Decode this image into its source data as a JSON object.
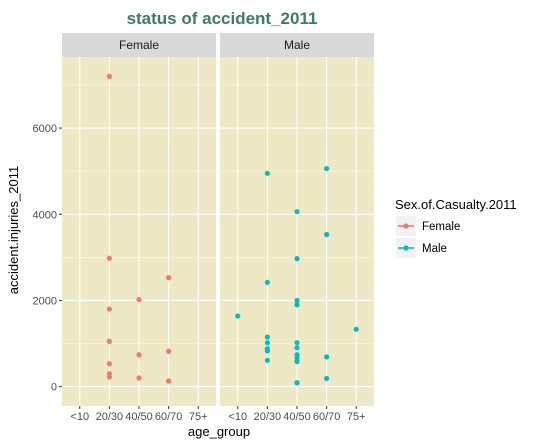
{
  "chart_data": {
    "type": "scatter",
    "title": "status of accident_2011",
    "title_color": "#3a7d60",
    "xlabel": "age_group",
    "ylabel": "accident.injuries_2011",
    "categories": [
      "<10",
      "20/30",
      "40/50",
      "60/70",
      "75+"
    ],
    "yticks": [
      0,
      2000,
      4000,
      6000
    ],
    "ylim": [
      -450,
      7650
    ],
    "panel_background": "#eee8c5",
    "strip_background": "#d9d9d9",
    "facets": [
      {
        "label": "Female"
      },
      {
        "label": "Male"
      }
    ],
    "legend": {
      "title": "Sex.of.Casualty.2011",
      "position": "right",
      "entries": [
        {
          "label": "Female",
          "color": "#f8766d"
        },
        {
          "label": "Male",
          "color": "#00bfc4"
        }
      ]
    },
    "series": [
      {
        "facet": "Female",
        "color": "#f8766d",
        "points": [
          {
            "x": "20/30",
            "y": 7200
          },
          {
            "x": "20/30",
            "y": 2980
          },
          {
            "x": "20/30",
            "y": 1800
          },
          {
            "x": "20/30",
            "y": 1050
          },
          {
            "x": "20/30",
            "y": 530
          },
          {
            "x": "20/30",
            "y": 300
          },
          {
            "x": "20/30",
            "y": 220
          },
          {
            "x": "40/50",
            "y": 2020
          },
          {
            "x": "40/50",
            "y": 740
          },
          {
            "x": "40/50",
            "y": 200
          },
          {
            "x": "60/70",
            "y": 2530
          },
          {
            "x": "60/70",
            "y": 820
          },
          {
            "x": "60/70",
            "y": 130
          }
        ]
      },
      {
        "facet": "Male",
        "color": "#00bfc4",
        "points": [
          {
            "x": "<10",
            "y": 1640
          },
          {
            "x": "20/30",
            "y": 4950
          },
          {
            "x": "20/30",
            "y": 2420
          },
          {
            "x": "20/30",
            "y": 1150
          },
          {
            "x": "20/30",
            "y": 1020
          },
          {
            "x": "20/30",
            "y": 880
          },
          {
            "x": "20/30",
            "y": 830
          },
          {
            "x": "20/30",
            "y": 610
          },
          {
            "x": "40/50",
            "y": 4060
          },
          {
            "x": "40/50",
            "y": 2970
          },
          {
            "x": "40/50",
            "y": 2000
          },
          {
            "x": "40/50",
            "y": 1900
          },
          {
            "x": "40/50",
            "y": 1020
          },
          {
            "x": "40/50",
            "y": 900
          },
          {
            "x": "40/50",
            "y": 740
          },
          {
            "x": "40/50",
            "y": 660
          },
          {
            "x": "40/50",
            "y": 580
          },
          {
            "x": "40/50",
            "y": 90
          },
          {
            "x": "60/70",
            "y": 5060
          },
          {
            "x": "60/70",
            "y": 3530
          },
          {
            "x": "60/70",
            "y": 690
          },
          {
            "x": "60/70",
            "y": 190
          },
          {
            "x": "75+",
            "y": 1330
          }
        ]
      }
    ]
  }
}
